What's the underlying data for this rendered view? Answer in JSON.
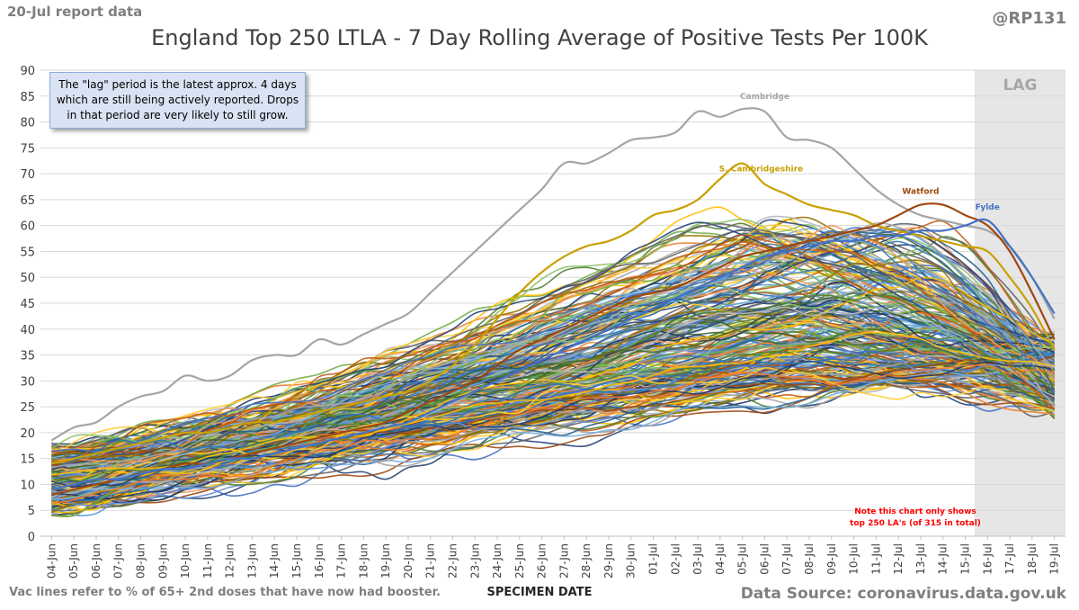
{
  "header": {
    "report_label": "20-Jul report data",
    "handle": "@RP131",
    "title": "England Top 250 LTLA - 7 Day Rolling Average of Positive Tests Per 100K"
  },
  "info_box": "The \"lag\" period is the latest approx. 4 days which are still being actively reported.  Drops in that period are very likely to still grow.",
  "note_text_1": "Note this chart only shows",
  "note_text_2": "top 250 LA's (of 315 in total)",
  "footer": {
    "vac_note": "Vac lines refer to % of 65+ 2nd doses that have now had booster.",
    "source": "Data Source: coronavirus.data.gov.uk"
  },
  "colors": {
    "cambridge": "#a5a5a5",
    "s_cambridgeshire": "#c9a000",
    "watford": "#9e480e",
    "fylde": "#4472c4",
    "lag_shade": "#e7e6e6",
    "note_red": "#ff0000",
    "palette": [
      "#4472c4",
      "#ed7d31",
      "#a5a5a5",
      "#ffc000",
      "#5b9bd5",
      "#70ad47",
      "#264478",
      "#9e480e",
      "#636363",
      "#997300",
      "#255e91",
      "#43682b",
      "#698ed0",
      "#f1975a",
      "#b7b7b7",
      "#ffcd33",
      "#7cafdd",
      "#8cc168",
      "#1f3864",
      "#c55a11",
      "#2e75b6",
      "#548235"
    ]
  },
  "chart_data": {
    "type": "line",
    "title": "England Top 250 LTLA - 7 Day Rolling Average of Positive Tests Per 100K",
    "xlabel": "SPECIMEN DATE",
    "ylabel": "",
    "ylim": [
      0,
      90
    ],
    "yticks": [
      0,
      5,
      10,
      15,
      20,
      25,
      30,
      35,
      40,
      45,
      50,
      55,
      60,
      65,
      70,
      75,
      80,
      85,
      90
    ],
    "grid": true,
    "lag_label": "LAG",
    "lag_period": [
      "16-Jul",
      "19-Jul"
    ],
    "categories": [
      "04-Jun",
      "05-Jun",
      "06-Jun",
      "07-Jun",
      "08-Jun",
      "09-Jun",
      "10-Jun",
      "11-Jun",
      "12-Jun",
      "13-Jun",
      "14-Jun",
      "15-Jun",
      "16-Jun",
      "17-Jun",
      "18-Jun",
      "19-Jun",
      "20-Jun",
      "21-Jun",
      "22-Jun",
      "23-Jun",
      "24-Jun",
      "25-Jun",
      "26-Jun",
      "27-Jun",
      "28-Jun",
      "29-Jun",
      "30-Jun",
      "01-Jul",
      "02-Jul",
      "03-Jul",
      "04-Jul",
      "05-Jul",
      "06-Jul",
      "07-Jul",
      "08-Jul",
      "09-Jul",
      "10-Jul",
      "11-Jul",
      "12-Jul",
      "13-Jul",
      "14-Jul",
      "15-Jul",
      "16-Jul",
      "17-Jul",
      "18-Jul",
      "19-Jul"
    ],
    "series": [
      {
        "name": "Cambridge",
        "values": [
          18.5,
          21,
          22,
          25,
          27,
          28,
          31,
          30,
          31,
          34,
          35,
          35,
          38,
          37,
          39,
          41,
          43,
          47,
          51,
          55,
          59,
          63,
          67,
          72,
          72,
          74,
          76.5,
          77,
          78,
          82,
          81,
          82.5,
          82,
          77,
          76.5,
          75,
          71,
          67,
          64,
          62,
          61,
          60,
          59,
          56,
          50,
          42
        ]
      },
      {
        "name": "S. Cambridgeshire",
        "values": [
          14,
          15,
          16,
          17,
          18,
          19,
          20,
          20,
          21,
          22,
          22,
          23,
          24,
          25,
          26,
          27,
          28,
          30,
          33,
          37,
          42,
          47,
          51,
          54,
          56,
          57,
          59,
          62,
          63,
          65,
          69,
          72,
          68,
          66,
          64,
          63,
          62,
          60,
          59,
          58,
          57,
          56,
          55,
          50,
          44,
          36
        ]
      },
      {
        "name": "Watford",
        "values": [
          8,
          9,
          10,
          11,
          12,
          13,
          14,
          14,
          15,
          16,
          17,
          18,
          19,
          20,
          21,
          22,
          24,
          26,
          28,
          30,
          33,
          36,
          38,
          40,
          42,
          44,
          46,
          47,
          48,
          50,
          52,
          54,
          55,
          56,
          57,
          58,
          59,
          60,
          62,
          64,
          64,
          62,
          60,
          55,
          47,
          38
        ]
      },
      {
        "name": "Fylde",
        "values": [
          9,
          10,
          11,
          11,
          12,
          13,
          13,
          14,
          15,
          15,
          16,
          17,
          18,
          19,
          20,
          21,
          22,
          24,
          26,
          28,
          30,
          32,
          34,
          36,
          38,
          40,
          42,
          44,
          46,
          48,
          50,
          52,
          54,
          55,
          56,
          57,
          57,
          58,
          58,
          59,
          59,
          60,
          61,
          56,
          50,
          43
        ]
      }
    ],
    "bulk_series": {
      "count": 246,
      "description": "remaining top-250 LTLAs, similar rising-then-falling trajectories (start ~5-17, peak ~30-63, end ~25-38)"
    },
    "annotations": [
      {
        "text": "Cambridge",
        "series": "Cambridge"
      },
      {
        "text": "S. Cambridgeshire",
        "series": "S. Cambridgeshire"
      },
      {
        "text": "Watford",
        "series": "Watford"
      },
      {
        "text": "Fylde",
        "series": "Fylde"
      }
    ]
  }
}
